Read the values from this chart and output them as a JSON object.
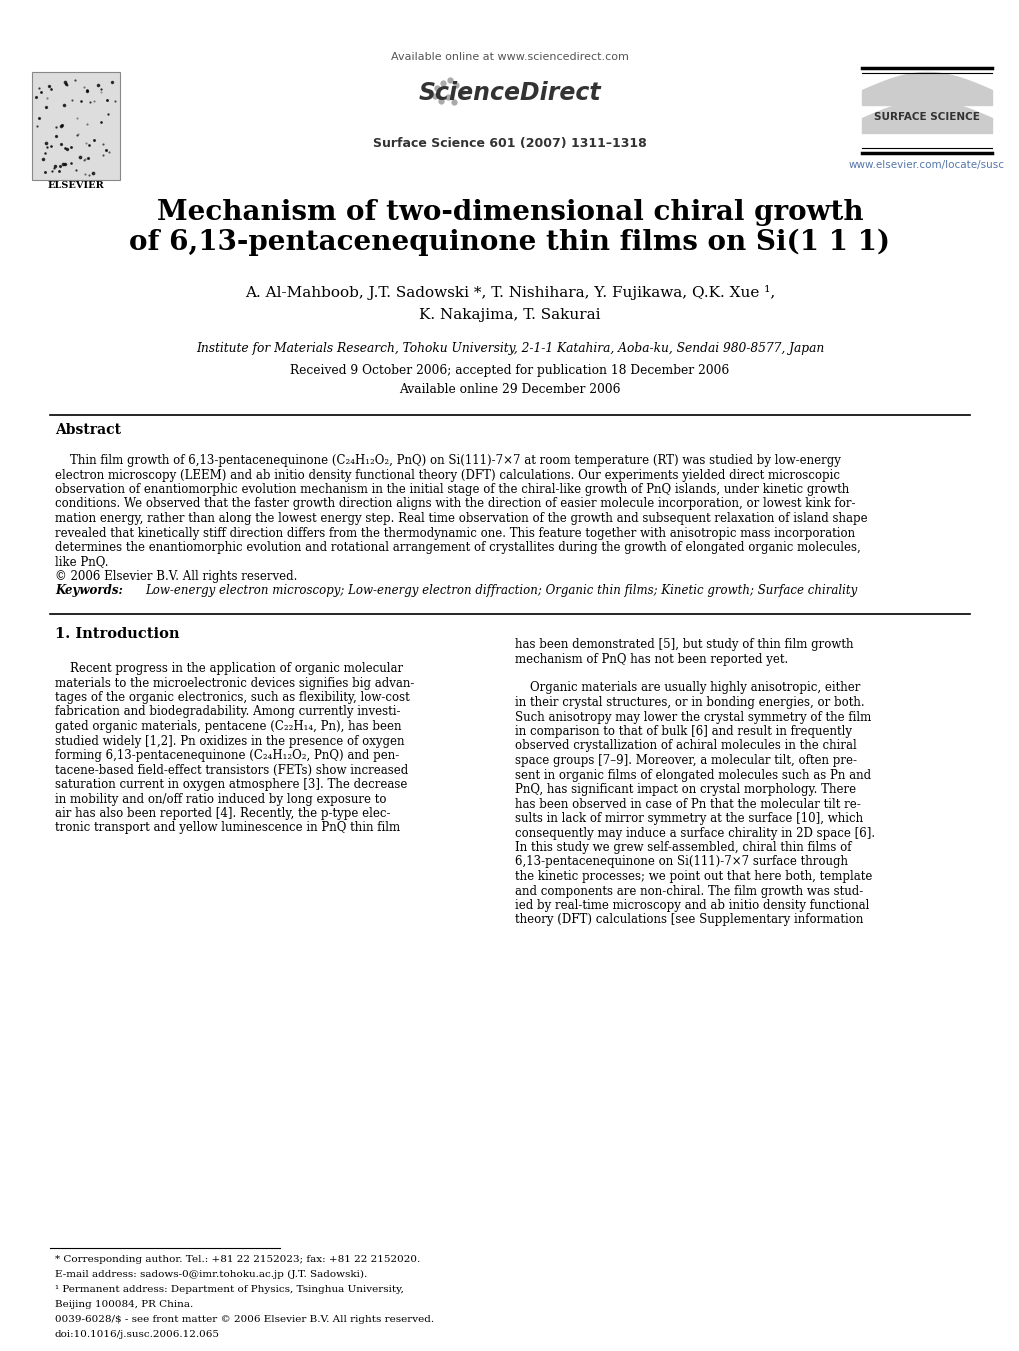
{
  "bg_color": "#ffffff",
  "title_line1": "Mechanism of two-dimensional chiral growth",
  "title_line2": "of 6,13-pentacenequinone thin films on Si(1 1 1)",
  "authors_line1": "A. Al-Mahboob, J.T. Sadowski *, T. Nishihara, Y. Fujikawa, Q.K. Xue ¹,",
  "authors_line2": "K. Nakajima, T. Sakurai",
  "affiliation": "Institute for Materials Research, Tohoku University, 2-1-1 Katahira, Aoba-ku, Sendai 980-8577, Japan",
  "received": "Received 9 October 2006; accepted for publication 18 December 2006",
  "available": "Available online 29 December 2006",
  "journal_header": "Available online at www.sciencedirect.com",
  "journal_name": "Surface Science 601 (2007) 1311–1318",
  "journal_url": "www.elsevier.com/locate/susc",
  "surface_science_label": "SURFACE SCIENCE",
  "abstract_title": "Abstract",
  "keywords_label": "Keywords:",
  "keywords_text": "Low-energy electron microscopy; Low-energy electron diffraction; Organic thin films; Kinetic growth; Surface chirality",
  "section1_title": "1. Introduction",
  "footnote1": "* Corresponding author. Tel.: +81 22 2152023; fax: +81 22 2152020.",
  "footnote2": "E-mail address: sadows-0@imr.tohoku.ac.jp (J.T. Sadowski).",
  "footnote3a": "¹ Permanent address: Department of Physics, Tsinghua University,",
  "footnote3b": "Beijing 100084, PR China.",
  "footnote4": "0039-6028/$ - see front matter © 2006 Elsevier B.V. All rights reserved.",
  "footnote5": "doi:10.1016/j.susc.2006.12.065",
  "abstract_lines": [
    "    Thin film growth of 6,13-pentacenequinone (C₂₄H₁₂O₂, PnQ) on Si(111)-7×7 at room temperature (RT) was studied by low-energy",
    "electron microscopy (LEEM) and ab initio density functional theory (DFT) calculations. Our experiments yielded direct microscopic",
    "observation of enantiomorphic evolution mechanism in the initial stage of the chiral-like growth of PnQ islands, under kinetic growth",
    "conditions. We observed that the faster growth direction aligns with the direction of easier molecule incorporation, or lowest kink for-",
    "mation energy, rather than along the lowest energy step. Real time observation of the growth and subsequent relaxation of island shape",
    "revealed that kinetically stiff direction differs from the thermodynamic one. This feature together with anisotropic mass incorporation",
    "determines the enantiomorphic evolution and rotational arrangement of crystallites during the growth of elongated organic molecules,",
    "like PnQ.",
    "© 2006 Elsevier B.V. All rights reserved."
  ],
  "col1_lines": [
    "    Recent progress in the application of organic molecular",
    "materials to the microelectronic devices signifies big advan-",
    "tages of the organic electronics, such as flexibility, low-cost",
    "fabrication and biodegradability. Among currently investi-",
    "gated organic materials, pentacene (C₂₂H₁₄, Pn), has been",
    "studied widely [1,2]. Pn oxidizes in the presence of oxygen",
    "forming 6,13-pentacenequinone (C₂₄H₁₂O₂, PnQ) and pen-",
    "tacene-based field-effect transistors (FETs) show increased",
    "saturation current in oxygen atmosphere [3]. The decrease",
    "in mobility and on/off ratio induced by long exposure to",
    "air has also been reported [4]. Recently, the p-type elec-",
    "tronic transport and yellow luminescence in PnQ thin film"
  ],
  "col2_lines": [
    "has been demonstrated [5], but study of thin film growth",
    "mechanism of PnQ has not been reported yet.",
    "",
    "    Organic materials are usually highly anisotropic, either",
    "in their crystal structures, or in bonding energies, or both.",
    "Such anisotropy may lower the crystal symmetry of the film",
    "in comparison to that of bulk [6] and result in frequently",
    "observed crystallization of achiral molecules in the chiral",
    "space groups [7–9]. Moreover, a molecular tilt, often pre-",
    "sent in organic films of elongated molecules such as Pn and",
    "PnQ, has significant impact on crystal morphology. There",
    "has been observed in case of Pn that the molecular tilt re-",
    "sults in lack of mirror symmetry at the surface [10], which",
    "consequently may induce a surface chirality in 2D space [6].",
    "In this study we grew self-assembled, chiral thin films of",
    "6,13-pentacenequinone on Si(111)-7×7 surface through",
    "the kinetic processes; we point out that here both, template",
    "and components are non-chiral. The film growth was stud-",
    "ied by real-time microscopy and ab initio density functional",
    "theory (DFT) calculations [see Supplementary information"
  ],
  "elsevier_logo_color": "#dddddd",
  "logo_border_color": "#888888",
  "wave_color": "#cccccc",
  "link_color": "#5577aa",
  "rule_color": "#000000",
  "footnote_rule_color": "#000000"
}
